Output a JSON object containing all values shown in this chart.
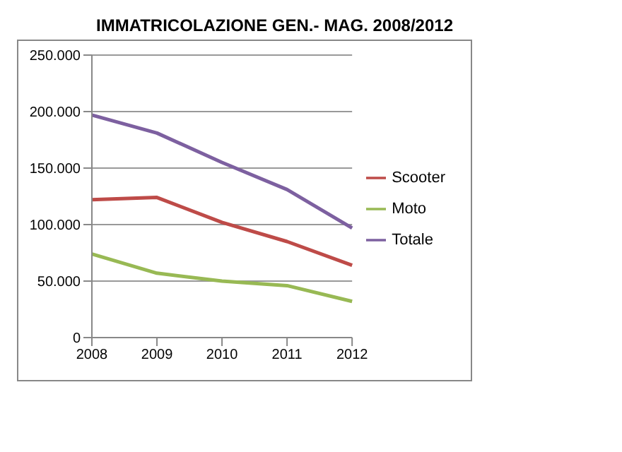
{
  "chart_data": {
    "type": "line",
    "title": "IMMATRICOLAZIONE GEN.- MAG. 2008/2012",
    "categories": [
      "2008",
      "2009",
      "2010",
      "2011",
      "2012"
    ],
    "series": [
      {
        "name": "Scooter",
        "color": "#be4b48",
        "values": [
          122000,
          124000,
          102000,
          85000,
          64000
        ]
      },
      {
        "name": "Moto",
        "color": "#98b954",
        "values": [
          74000,
          57000,
          50000,
          46000,
          32000
        ]
      },
      {
        "name": "Totale",
        "color": "#7d60a0",
        "values": [
          197000,
          181000,
          155000,
          131000,
          97000
        ]
      }
    ],
    "ylim": [
      0,
      250000
    ],
    "yticks": [
      0,
      {
        "value": 50000,
        "label": "50.000"
      },
      {
        "value": 100000,
        "label": "100.000"
      },
      {
        "value": 150000,
        "label": "150.000"
      },
      {
        "value": 200000,
        "label": "200.000"
      },
      {
        "value": 250000,
        "label": "250.000"
      }
    ],
    "grid": "y",
    "legend": "right",
    "marker": "none",
    "line_style": "solid"
  }
}
